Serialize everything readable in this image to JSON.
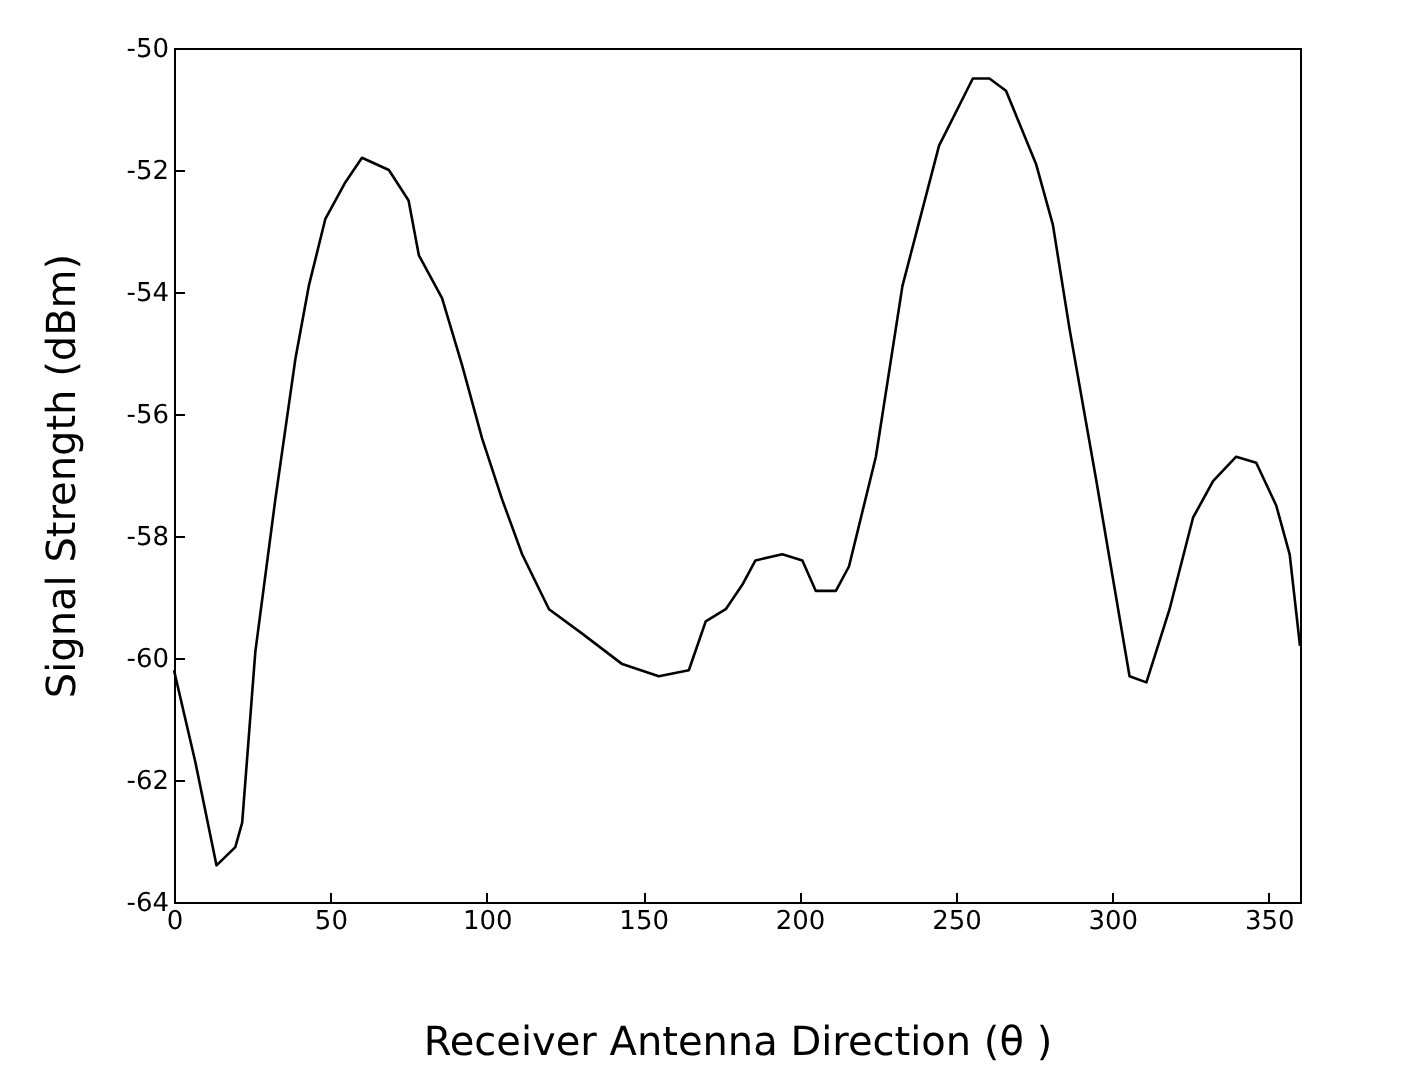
{
  "chart_data": {
    "type": "line",
    "xlabel": "Receiver Antenna Direction (θ )",
    "ylabel": "Signal Strength (dBm)",
    "x": [
      0,
      6.8,
      13.6,
      19.6,
      21.8,
      26,
      32.4,
      38.8,
      43.1,
      48.4,
      54.8,
      60.1,
      68.7,
      75,
      78.3,
      85.7,
      92.1,
      98.5,
      104.9,
      111.3,
      119.9,
      130.5,
      143.3,
      155,
      164.6,
      170,
      176.4,
      181.7,
      185.9,
      194.5,
      200.9,
      205.2,
      211.6,
      215.8,
      224.4,
      232.9,
      244.6,
      255.4,
      260.7,
      266,
      275.6,
      281,
      286.3,
      294.9,
      305.5,
      310.9,
      318.3,
      325.8,
      332.2,
      339.6,
      346,
      352.4,
      356.7,
      360
    ],
    "series": [
      {
        "color": "#000000",
        "values": [
          -60.2,
          -61.7,
          -63.4,
          -63.1,
          -62.7,
          -59.9,
          -57.4,
          -55.1,
          -53.9,
          -52.8,
          -52.2,
          -51.8,
          -52.0,
          -52.5,
          -53.4,
          -54.1,
          -55.2,
          -56.4,
          -57.4,
          -58.3,
          -59.2,
          -59.6,
          -60.1,
          -60.3,
          -60.2,
          -59.4,
          -59.2,
          -58.8,
          -58.4,
          -58.3,
          -58.4,
          -58.9,
          -58.9,
          -58.5,
          -56.7,
          -53.9,
          -51.6,
          -50.5,
          -50.5,
          -50.7,
          -51.9,
          -52.9,
          -54.6,
          -57.1,
          -60.3,
          -60.4,
          -59.2,
          -57.7,
          -57.1,
          -56.7,
          -56.8,
          -57.5,
          -58.3,
          -59.8
        ]
      }
    ],
    "xlim": [
      0,
      360
    ],
    "xticks": [
      0,
      50,
      100,
      150,
      200,
      250,
      300,
      350
    ],
    "ylim": [
      -64,
      -50
    ],
    "yticks": [
      -64,
      -62,
      -60,
      -58,
      -56,
      -54,
      -52,
      -50
    ],
    "grid": false,
    "marker": "none",
    "line_style": "solid"
  }
}
